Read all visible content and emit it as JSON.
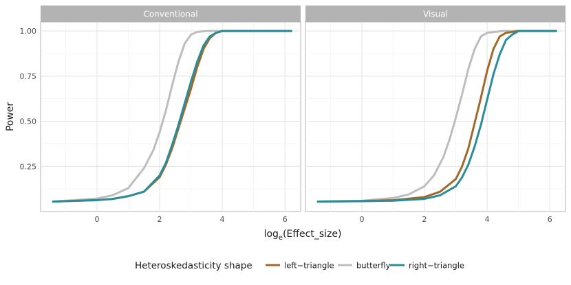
{
  "chart_data": {
    "type": "line",
    "ylabel": "Power",
    "xlabel": {
      "prefix": "log",
      "subscript": "e",
      "suffix": "(Effect_size)"
    },
    "xlim": [
      -1.8,
      6.5
    ],
    "ylim": [
      0,
      1.05
    ],
    "x_ticks": [
      0,
      2,
      4,
      6
    ],
    "y_ticks": [
      0.25,
      0.5,
      0.75,
      1.0
    ],
    "y_tick_labels": [
      "0.25",
      "0.50",
      "0.75",
      "1.00"
    ],
    "grid": true,
    "legend": {
      "title": "Heteroskedasticity shape",
      "placement": "bottom",
      "entries": [
        {
          "name": "left−triangle",
          "color": "#a0692a"
        },
        {
          "name": "butterfly",
          "color": "#bdbdbd"
        },
        {
          "name": "right−triangle",
          "color": "#2b8c9a"
        }
      ]
    },
    "panels": [
      {
        "title": "Conventional",
        "series": [
          {
            "name": "butterfly",
            "color": "#bdbdbd",
            "x": [
              -1.4,
              0,
              0.5,
              1,
              1.5,
              1.8,
              2,
              2.2,
              2.4,
              2.6,
              2.8,
              3.0,
              3.2,
              3.5,
              4.0,
              5.0,
              6.2
            ],
            "y": [
              0.055,
              0.072,
              0.09,
              0.13,
              0.24,
              0.34,
              0.44,
              0.56,
              0.7,
              0.83,
              0.93,
              0.98,
              0.995,
              1.0,
              1.0,
              1.0,
              1.0
            ]
          },
          {
            "name": "left−triangle",
            "color": "#a0692a",
            "x": [
              -1.4,
              0,
              0.5,
              1,
              1.5,
              2,
              2.2,
              2.4,
              2.6,
              2.8,
              3.0,
              3.2,
              3.4,
              3.6,
              3.8,
              4.0,
              5.0,
              6.2
            ],
            "y": [
              0.055,
              0.063,
              0.07,
              0.085,
              0.11,
              0.19,
              0.26,
              0.35,
              0.46,
              0.57,
              0.68,
              0.8,
              0.9,
              0.96,
              0.99,
              1.0,
              1.0,
              1.0
            ]
          },
          {
            "name": "right−triangle",
            "color": "#2b8c9a",
            "x": [
              -1.4,
              0,
              0.5,
              1,
              1.5,
              2,
              2.2,
              2.4,
              2.6,
              2.8,
              3.0,
              3.2,
              3.4,
              3.6,
              3.8,
              4.0,
              5.0,
              6.2
            ],
            "y": [
              0.055,
              0.063,
              0.07,
              0.085,
              0.11,
              0.2,
              0.27,
              0.37,
              0.48,
              0.6,
              0.72,
              0.83,
              0.92,
              0.97,
              0.99,
              1.0,
              1.0,
              1.0
            ]
          }
        ]
      },
      {
        "title": "Visual",
        "series": [
          {
            "name": "butterfly",
            "color": "#bdbdbd",
            "x": [
              -1.4,
              0,
              1,
              1.5,
              2,
              2.3,
              2.6,
              2.8,
              3.0,
              3.2,
              3.4,
              3.6,
              3.8,
              4.0,
              4.5,
              5.0,
              6.2
            ],
            "y": [
              0.055,
              0.06,
              0.075,
              0.095,
              0.14,
              0.2,
              0.3,
              0.4,
              0.52,
              0.65,
              0.79,
              0.9,
              0.97,
              0.99,
              1.0,
              1.0,
              1.0
            ]
          },
          {
            "name": "left−triangle",
            "color": "#a0692a",
            "x": [
              -1.4,
              0,
              1,
              2,
              2.5,
              3.0,
              3.2,
              3.4,
              3.6,
              3.8,
              4.0,
              4.2,
              4.4,
              4.6,
              5.0,
              6.2
            ],
            "y": [
              0.055,
              0.058,
              0.063,
              0.08,
              0.11,
              0.18,
              0.25,
              0.35,
              0.49,
              0.63,
              0.78,
              0.9,
              0.97,
              0.99,
              1.0,
              1.0
            ]
          },
          {
            "name": "right−triangle",
            "color": "#2b8c9a",
            "x": [
              -1.4,
              0,
              1,
              2,
              2.5,
              3.0,
              3.2,
              3.4,
              3.6,
              3.8,
              4.0,
              4.2,
              4.4,
              4.6,
              4.8,
              5.0,
              5.5,
              6.2
            ],
            "y": [
              0.055,
              0.057,
              0.06,
              0.07,
              0.09,
              0.14,
              0.19,
              0.26,
              0.36,
              0.48,
              0.62,
              0.76,
              0.87,
              0.95,
              0.98,
              1.0,
              1.0,
              1.0
            ]
          }
        ]
      }
    ]
  }
}
